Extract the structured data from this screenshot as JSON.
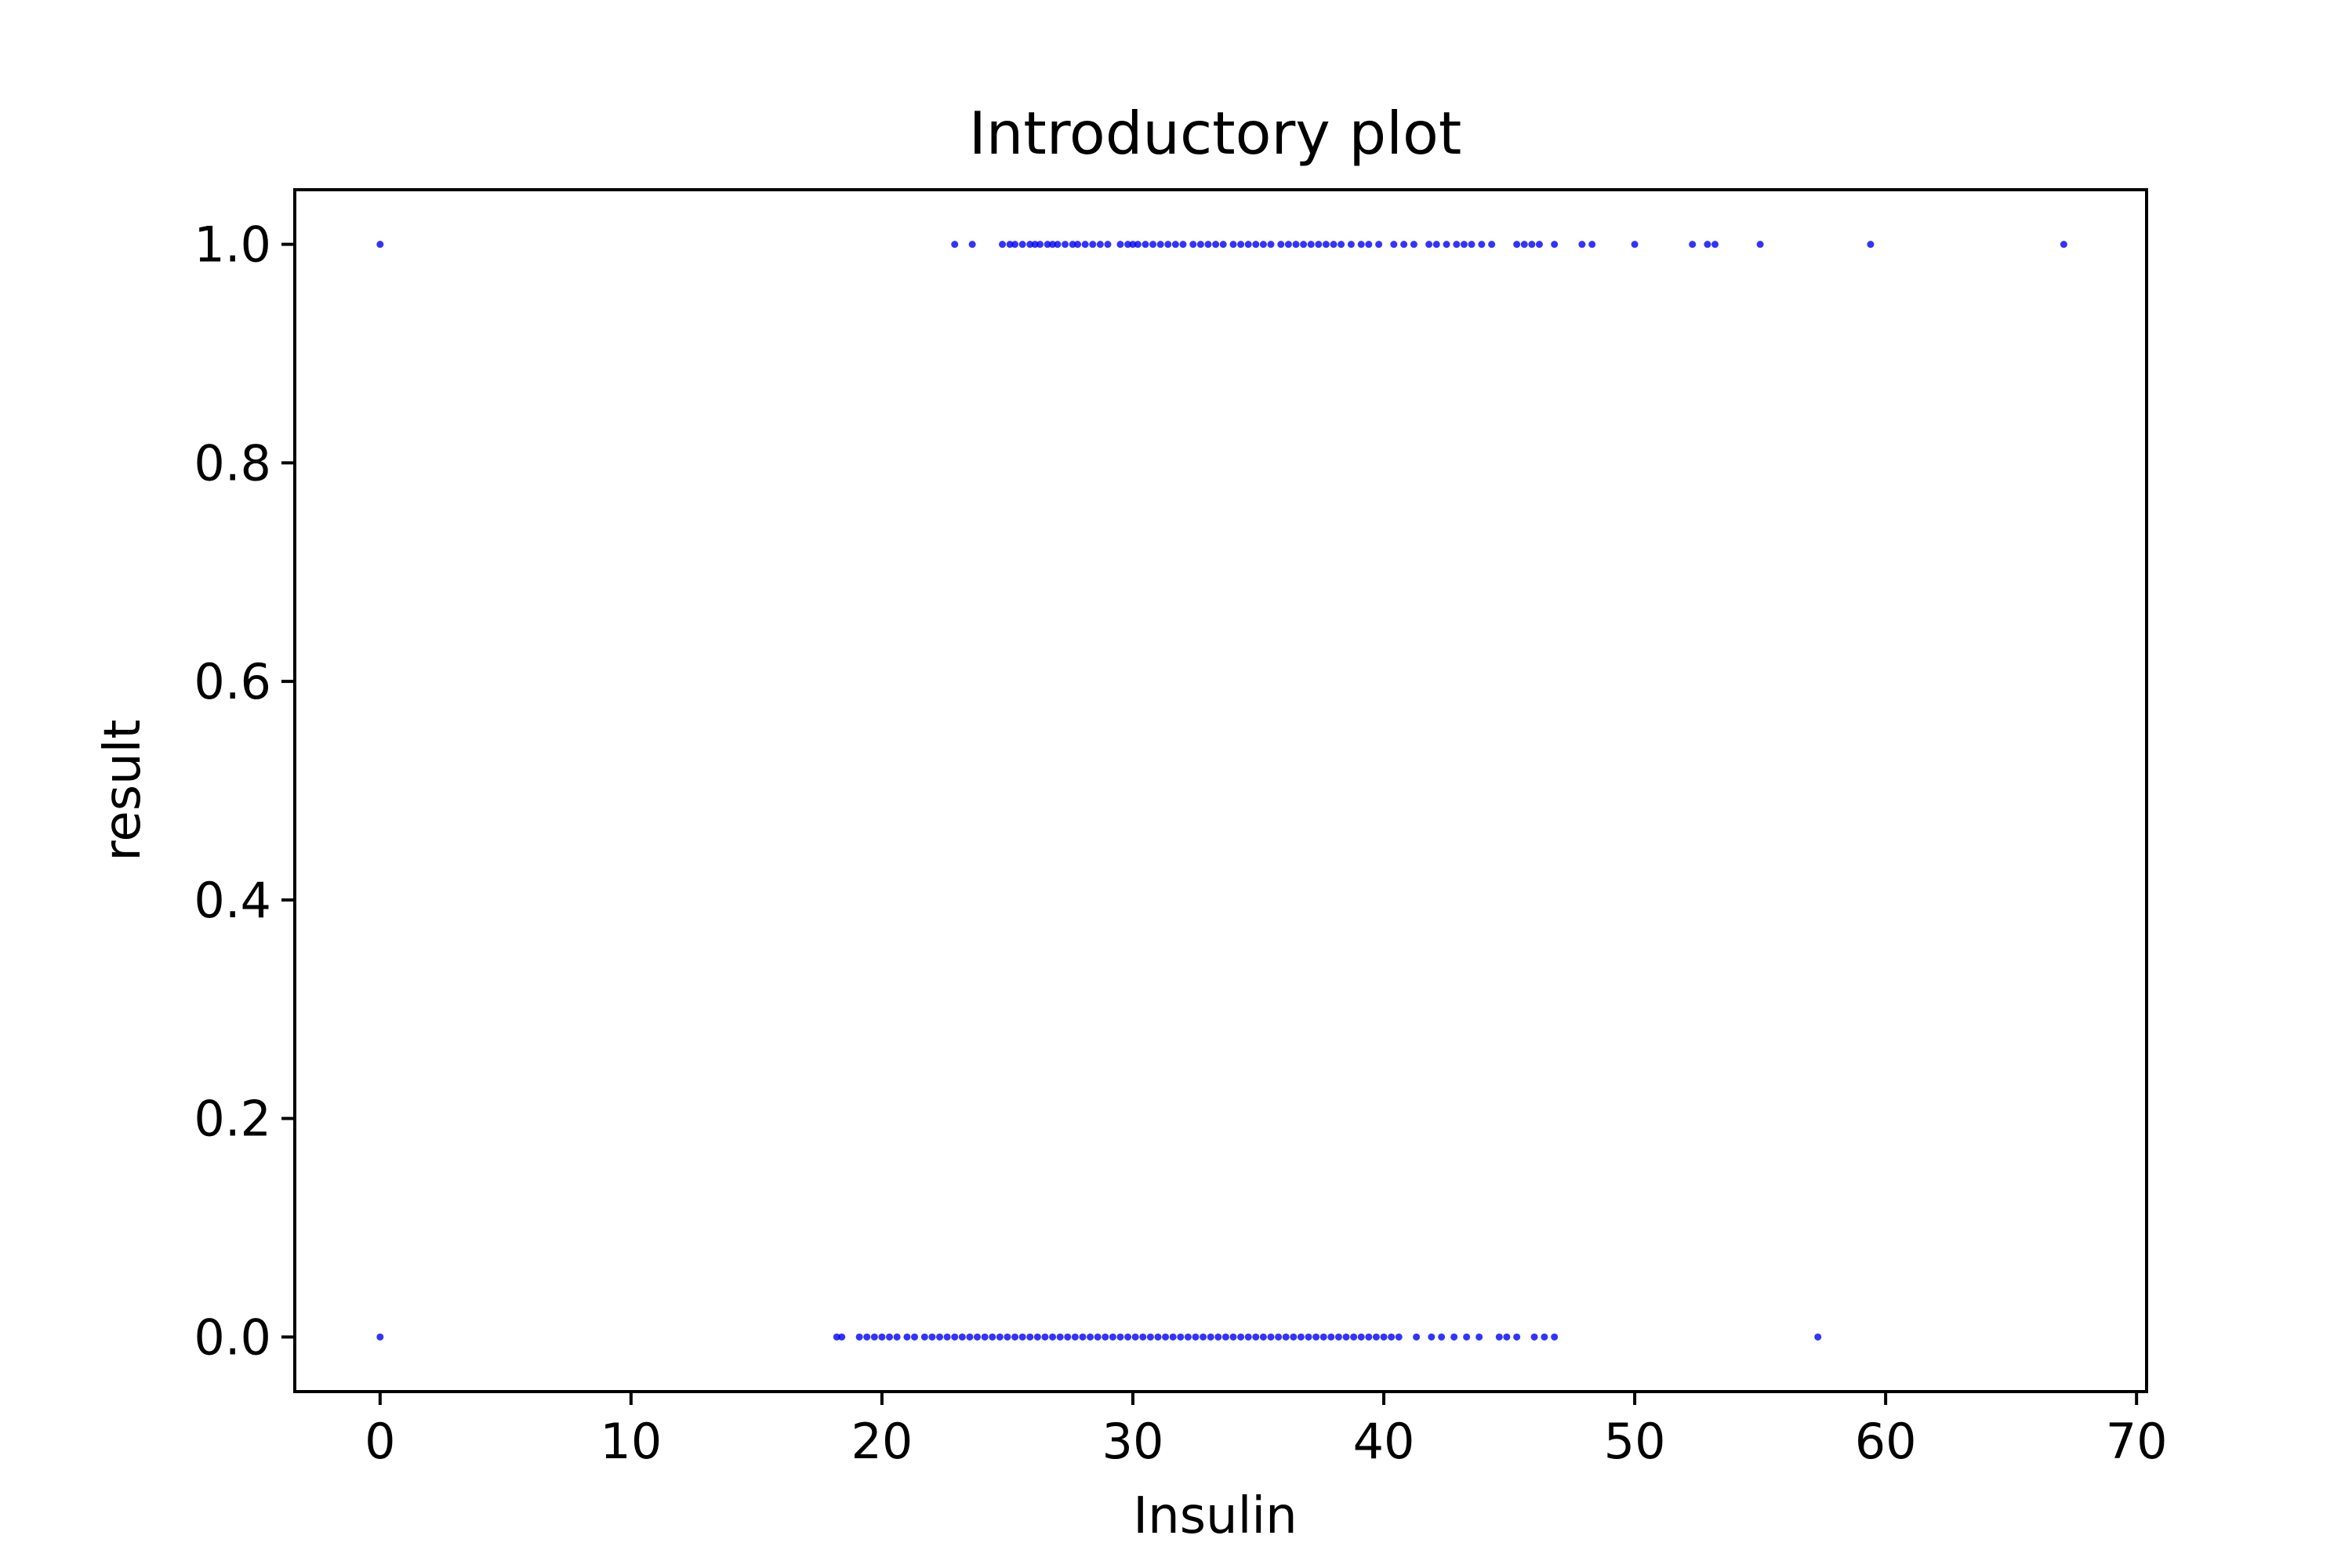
{
  "chart_data": {
    "type": "scatter",
    "title": "Introductory plot",
    "xlabel": "Insulin",
    "ylabel": "result",
    "xlim": [
      -3.4,
      70.4
    ],
    "ylim": [
      -0.05,
      1.05
    ],
    "xticks": [
      0,
      10,
      20,
      30,
      40,
      50,
      60,
      70
    ],
    "yticks": [
      0.0,
      0.2,
      0.4,
      0.6,
      0.8,
      1.0
    ],
    "xtick_labels": [
      "0",
      "10",
      "20",
      "30",
      "40",
      "50",
      "60",
      "70"
    ],
    "ytick_labels": [
      "0.0",
      "0.2",
      "0.4",
      "0.6",
      "0.8",
      "1.0"
    ],
    "grid": false,
    "marker_color": "#0000ff",
    "series": [
      {
        "values": [
          [
            0.0,
            1
          ],
          [
            22.9,
            1
          ],
          [
            23.6,
            1
          ],
          [
            24.8,
            1
          ],
          [
            25.1,
            1
          ],
          [
            25.3,
            1
          ],
          [
            25.6,
            1
          ],
          [
            25.9,
            1
          ],
          [
            26.1,
            1
          ],
          [
            26.3,
            1
          ],
          [
            26.6,
            1
          ],
          [
            26.8,
            1
          ],
          [
            27.0,
            1
          ],
          [
            27.3,
            1
          ],
          [
            27.6,
            1
          ],
          [
            27.8,
            1
          ],
          [
            28.1,
            1
          ],
          [
            28.4,
            1
          ],
          [
            28.7,
            1
          ],
          [
            29.0,
            1
          ],
          [
            29.5,
            1
          ],
          [
            29.8,
            1
          ],
          [
            30.0,
            1
          ],
          [
            30.2,
            1
          ],
          [
            30.5,
            1
          ],
          [
            30.8,
            1
          ],
          [
            31.1,
            1
          ],
          [
            31.4,
            1
          ],
          [
            31.7,
            1
          ],
          [
            32.0,
            1
          ],
          [
            32.4,
            1
          ],
          [
            32.7,
            1
          ],
          [
            33.0,
            1
          ],
          [
            33.3,
            1
          ],
          [
            33.6,
            1
          ],
          [
            34.0,
            1
          ],
          [
            34.3,
            1
          ],
          [
            34.6,
            1
          ],
          [
            34.9,
            1
          ],
          [
            35.2,
            1
          ],
          [
            35.5,
            1
          ],
          [
            35.9,
            1
          ],
          [
            36.2,
            1
          ],
          [
            36.5,
            1
          ],
          [
            36.8,
            1
          ],
          [
            37.1,
            1
          ],
          [
            37.4,
            1
          ],
          [
            37.7,
            1
          ],
          [
            38.0,
            1
          ],
          [
            38.3,
            1
          ],
          [
            38.7,
            1
          ],
          [
            39.1,
            1
          ],
          [
            39.4,
            1
          ],
          [
            39.8,
            1
          ],
          [
            40.4,
            1
          ],
          [
            40.8,
            1
          ],
          [
            41.2,
            1
          ],
          [
            41.8,
            1
          ],
          [
            42.1,
            1
          ],
          [
            42.5,
            1
          ],
          [
            42.9,
            1
          ],
          [
            43.2,
            1
          ],
          [
            43.5,
            1
          ],
          [
            43.9,
            1
          ],
          [
            44.3,
            1
          ],
          [
            45.3,
            1
          ],
          [
            45.6,
            1
          ],
          [
            45.9,
            1
          ],
          [
            46.2,
            1
          ],
          [
            46.8,
            1
          ],
          [
            47.9,
            1
          ],
          [
            48.3,
            1
          ],
          [
            50.0,
            1
          ],
          [
            52.3,
            1
          ],
          [
            52.9,
            1
          ],
          [
            53.2,
            1
          ],
          [
            55.0,
            1
          ],
          [
            59.4,
            1
          ],
          [
            67.1,
            1
          ],
          [
            0.0,
            0
          ],
          [
            18.2,
            0
          ],
          [
            18.4,
            0
          ],
          [
            19.1,
            0
          ],
          [
            19.4,
            0
          ],
          [
            19.7,
            0
          ],
          [
            20.0,
            0
          ],
          [
            20.3,
            0
          ],
          [
            20.6,
            0
          ],
          [
            21.0,
            0
          ],
          [
            21.3,
            0
          ],
          [
            21.7,
            0
          ],
          [
            22.0,
            0
          ],
          [
            22.3,
            0
          ],
          [
            22.6,
            0
          ],
          [
            22.9,
            0
          ],
          [
            23.2,
            0
          ],
          [
            23.5,
            0
          ],
          [
            23.8,
            0
          ],
          [
            24.1,
            0
          ],
          [
            24.4,
            0
          ],
          [
            24.7,
            0
          ],
          [
            25.0,
            0
          ],
          [
            25.3,
            0
          ],
          [
            25.6,
            0
          ],
          [
            25.9,
            0
          ],
          [
            26.2,
            0
          ],
          [
            26.5,
            0
          ],
          [
            26.8,
            0
          ],
          [
            27.1,
            0
          ],
          [
            27.4,
            0
          ],
          [
            27.7,
            0
          ],
          [
            28.0,
            0
          ],
          [
            28.3,
            0
          ],
          [
            28.6,
            0
          ],
          [
            28.9,
            0
          ],
          [
            29.2,
            0
          ],
          [
            29.5,
            0
          ],
          [
            29.8,
            0
          ],
          [
            30.1,
            0
          ],
          [
            30.4,
            0
          ],
          [
            30.7,
            0
          ],
          [
            31.0,
            0
          ],
          [
            31.3,
            0
          ],
          [
            31.6,
            0
          ],
          [
            31.9,
            0
          ],
          [
            32.2,
            0
          ],
          [
            32.5,
            0
          ],
          [
            32.8,
            0
          ],
          [
            33.1,
            0
          ],
          [
            33.4,
            0
          ],
          [
            33.7,
            0
          ],
          [
            34.0,
            0
          ],
          [
            34.3,
            0
          ],
          [
            34.6,
            0
          ],
          [
            34.9,
            0
          ],
          [
            35.2,
            0
          ],
          [
            35.5,
            0
          ],
          [
            35.8,
            0
          ],
          [
            36.1,
            0
          ],
          [
            36.4,
            0
          ],
          [
            36.7,
            0
          ],
          [
            37.0,
            0
          ],
          [
            37.3,
            0
          ],
          [
            37.6,
            0
          ],
          [
            37.9,
            0
          ],
          [
            38.2,
            0
          ],
          [
            38.5,
            0
          ],
          [
            38.8,
            0
          ],
          [
            39.1,
            0
          ],
          [
            39.4,
            0
          ],
          [
            39.7,
            0
          ],
          [
            40.0,
            0
          ],
          [
            40.3,
            0
          ],
          [
            40.6,
            0
          ],
          [
            41.3,
            0
          ],
          [
            41.9,
            0
          ],
          [
            42.3,
            0
          ],
          [
            42.8,
            0
          ],
          [
            43.3,
            0
          ],
          [
            43.8,
            0
          ],
          [
            44.6,
            0
          ],
          [
            44.9,
            0
          ],
          [
            45.3,
            0
          ],
          [
            46.0,
            0
          ],
          [
            46.4,
            0
          ],
          [
            46.8,
            0
          ],
          [
            57.3,
            0
          ]
        ]
      }
    ]
  }
}
